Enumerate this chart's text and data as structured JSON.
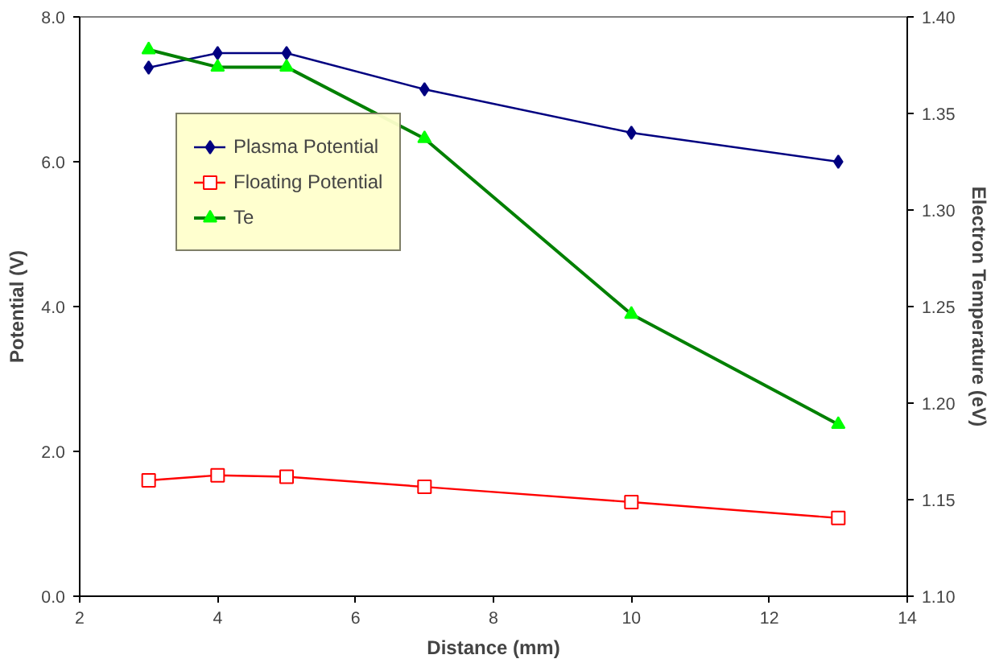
{
  "chart_data": {
    "type": "line",
    "xlabel": "Distance (mm)",
    "ylabel": "Potential (V)",
    "y2label": "Electron Temperature (eV)",
    "x": [
      3,
      4,
      5,
      7,
      10,
      13
    ],
    "xlim": [
      2,
      14
    ],
    "xticks": [
      2,
      4,
      6,
      8,
      10,
      12,
      14
    ],
    "ylim": [
      0,
      8
    ],
    "yticks": [
      {
        "value": 0,
        "label": "0.0"
      },
      {
        "value": 2,
        "label": "2.0"
      },
      {
        "value": 4,
        "label": "4.0"
      },
      {
        "value": 6,
        "label": "6.0"
      },
      {
        "value": 8,
        "label": "8.0"
      }
    ],
    "y2lim": [
      1.1,
      1.4
    ],
    "y2ticks": [
      {
        "value": 1.1,
        "label": "1.10"
      },
      {
        "value": 1.15,
        "label": "1.15"
      },
      {
        "value": 1.2,
        "label": "1.20"
      },
      {
        "value": 1.25,
        "label": "1.25"
      },
      {
        "value": 1.3,
        "label": "1.30"
      },
      {
        "value": 1.35,
        "label": "1.35"
      },
      {
        "value": 1.4,
        "label": "1.40"
      }
    ],
    "series": [
      {
        "name": "Plasma Potential",
        "color": "#000080",
        "marker": "diamond",
        "values": [
          7.3,
          7.5,
          7.5,
          7.0,
          6.4,
          6.0
        ]
      },
      {
        "name": "Floating Potential",
        "color": "#ff0000",
        "marker": "square",
        "values": [
          1.6,
          1.67,
          1.65,
          1.51,
          1.3,
          1.08
        ]
      },
      {
        "name": "Te",
        "color": "#008000",
        "marker": "triangle",
        "axis": "y2",
        "values": [
          1.383,
          1.374,
          1.374,
          1.337,
          1.246,
          1.189
        ]
      }
    ],
    "grid": false,
    "legend": "top left"
  }
}
